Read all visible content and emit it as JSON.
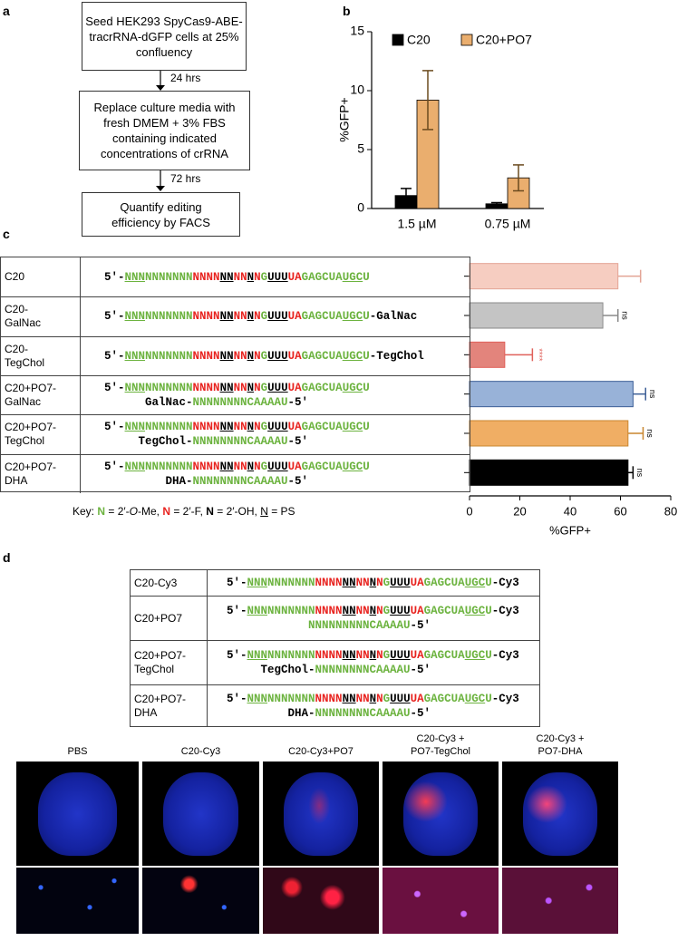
{
  "panel_labels": [
    "a",
    "b",
    "c",
    "d"
  ],
  "flowchart": {
    "steps": [
      [
        "Seed HEK293 SpyCas9-ABE-",
        "tracrRNA-dGFP cells at 25%",
        "confluency"
      ],
      [
        "Replace culture media with",
        "fresh DMEM + 3% FBS",
        "containing indicated",
        "concentrations of crRNA"
      ],
      [
        "Quantify editing",
        "efficiency by FACS"
      ]
    ],
    "arrows": [
      "24 hrs",
      "72 hrs"
    ]
  },
  "seq_colors": {
    "g": "#6cb33f",
    "r": "#e8231f",
    "k": "#000000"
  },
  "guide": [
    {
      "t": "5′-",
      "c": "k"
    },
    {
      "t": "NNN",
      "c": "g",
      "u": true
    },
    {
      "t": "NNNNNNN",
      "c": "g"
    },
    {
      "t": "NNNN",
      "c": "r"
    },
    {
      "t": "NN",
      "c": "k",
      "u": true
    },
    {
      "t": "NN",
      "c": "r"
    },
    {
      "t": "N",
      "c": "k",
      "u": true
    },
    {
      "t": "N",
      "c": "r"
    },
    {
      "t": "G",
      "c": "g"
    },
    {
      "t": "UUU",
      "c": "k",
      "u": true
    },
    {
      "t": "UA",
      "c": "r"
    },
    {
      "t": "GAGCUA",
      "c": "g"
    },
    {
      "t": "UGC",
      "c": "g",
      "u": true
    },
    {
      "t": "U",
      "c": "g"
    }
  ],
  "chart_data": [
    {
      "type": "bar",
      "y_label": "%GFP+",
      "categories": [
        "1.5 µM",
        "0.75 µM"
      ],
      "series": [
        {
          "name": "C20",
          "color": "#000000",
          "values": [
            1.1,
            0.4
          ],
          "errors": [
            0.6,
            0.1
          ]
        },
        {
          "name": "C20+PO7",
          "color": "#eaae6e",
          "values": [
            9.2,
            2.6
          ],
          "errors": [
            2.5,
            1.1
          ]
        }
      ],
      "ylim": [
        0,
        15
      ],
      "yticks": [
        0,
        5,
        10,
        15
      ],
      "legend": "top"
    },
    {
      "type": "hbar",
      "x_label": "%GFP+",
      "categories": [
        [
          "C20"
        ],
        [
          "C20-",
          "GalNac"
        ],
        [
          "C20-",
          "TegChol"
        ],
        [
          "C20+PO7-",
          "GalNac"
        ],
        [
          "C20+PO7-",
          "TegChol"
        ],
        [
          "C20+PO7-",
          "DHA"
        ]
      ],
      "values": [
        59,
        53,
        14,
        65,
        63,
        63
      ],
      "errors": [
        9,
        6,
        11,
        5,
        6,
        2
      ],
      "colors": [
        "#f6cdc1",
        "#c4c4c4",
        "#e3847c",
        "#98b2d8",
        "#f0ae64",
        "#000000"
      ],
      "edge_colors": [
        "#e3a495",
        "#8a8a8a",
        "#e0605a",
        "#3d5f97",
        "#c9862f",
        "#000000"
      ],
      "annotations": [
        null,
        "ns",
        "****",
        "ns",
        "ns",
        "ns"
      ],
      "xlim": [
        0,
        80
      ],
      "xticks": [
        0,
        20,
        40,
        60,
        80
      ]
    }
  ],
  "sequences_c": [
    {
      "suffix": [],
      "second": []
    },
    {
      "suffix": [
        {
          "t": "-GalNac"
        }
      ],
      "second": []
    },
    {
      "suffix": [
        {
          "t": "-TegChol"
        }
      ],
      "second": []
    },
    {
      "suffix": [],
      "second": [
        {
          "t": "GalNac-"
        },
        {
          "t": "NNNNNNNNCAAAAU",
          "c": "g"
        },
        {
          "t": "-5′"
        }
      ]
    },
    {
      "suffix": [],
      "second": [
        {
          "t": "TegChol-"
        },
        {
          "t": "NNNNNNNNCAAAAU",
          "c": "g"
        },
        {
          "t": "-5′"
        }
      ]
    },
    {
      "suffix": [],
      "second": [
        {
          "t": "DHA-"
        },
        {
          "t": "NNNNNNNNCAAAAU",
          "c": "g"
        },
        {
          "t": "-5′"
        }
      ]
    }
  ],
  "key": [
    {
      "t": "Key: "
    },
    {
      "t": "N",
      "c": "g",
      "b": true
    },
    {
      "t": " = 2′-"
    },
    {
      "t": "O",
      "i": true
    },
    {
      "t": "-Me, "
    },
    {
      "t": "N",
      "c": "r",
      "b": true
    },
    {
      "t": " = 2′-F, "
    },
    {
      "t": "N",
      "b": true
    },
    {
      "t": " = 2′-OH, "
    },
    {
      "t": "N",
      "u": true
    },
    {
      "t": " = PS"
    }
  ],
  "table_d": [
    {
      "label": [
        "C20-Cy3"
      ],
      "suffix": [
        {
          "t": "-Cy3"
        }
      ],
      "second": []
    },
    {
      "label": [
        "C20+PO7"
      ],
      "suffix": [
        {
          "t": "-Cy3"
        }
      ],
      "second": [
        {
          "t": "NNNNNNNNNCAAAAU",
          "c": "g"
        },
        {
          "t": "-5′"
        }
      ]
    },
    {
      "label": [
        "C20+PO7-",
        "TegChol"
      ],
      "suffix": [
        {
          "t": "-Cy3"
        }
      ],
      "second": [
        {
          "t": "TegChol-"
        },
        {
          "t": "NNNNNNNNCAAAAU",
          "c": "g"
        },
        {
          "t": "-5′"
        }
      ]
    },
    {
      "label": [
        "C20+PO7-",
        "DHA"
      ],
      "suffix": [
        {
          "t": "-Cy3"
        }
      ],
      "second": [
        {
          "t": "DHA-"
        },
        {
          "t": "NNNNNNNNCAAAAU",
          "c": "g"
        },
        {
          "t": "-5′"
        }
      ]
    }
  ],
  "image_labels": [
    [
      "PBS"
    ],
    [
      "C20-Cy3"
    ],
    [
      "C20-Cy3+PO7"
    ],
    [
      "C20-Cy3 +",
      "PO7-TegChol"
    ],
    [
      "C20-Cy3 +",
      "PO7-DHA"
    ]
  ]
}
